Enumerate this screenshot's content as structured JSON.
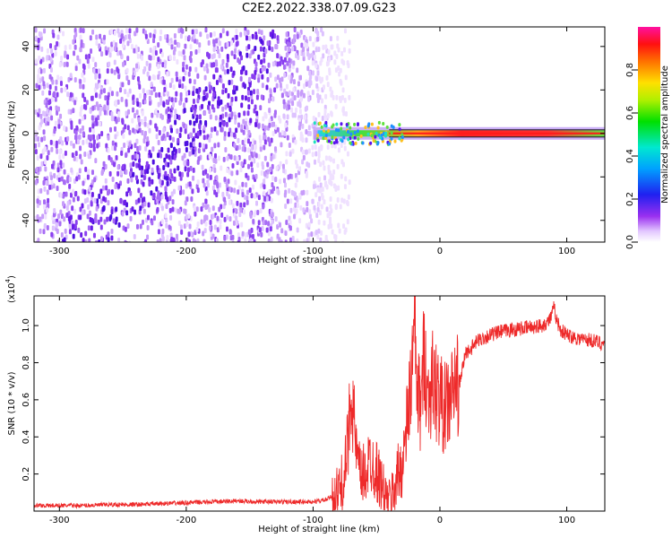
{
  "title": "C2E2.2022.338.07.09.G23",
  "colors": {
    "snr_line": "#ee2a2a",
    "spectro_low": "#5b12ee",
    "spectro_line": "#ff1a1a"
  },
  "chart_data": [
    {
      "type": "heatmap",
      "xlabel": "Height of straight line (km)",
      "ylabel": "Frequency (Hz)",
      "xlim": [
        -320,
        130
      ],
      "ylim": [
        -50,
        49
      ],
      "xticks": [
        -300,
        -200,
        -100,
        0,
        100
      ],
      "xtick_labels": [
        "-300",
        "-200",
        "-100",
        "0",
        "100"
      ],
      "yticks": [
        40,
        20,
        0,
        -20,
        -40
      ],
      "ytick_labels": [
        "40",
        "20",
        "0",
        "-20",
        "-40"
      ],
      "colorbar": {
        "label": "Normalized spectral amplitude",
        "range": [
          0,
          1
        ],
        "ticks": [
          0.0,
          0.2,
          0.4,
          0.6,
          0.8
        ],
        "tick_labels": [
          "0.0",
          "0.2",
          "0.4",
          "0.6",
          "0.8"
        ],
        "colormap": "rainbow"
      },
      "features": {
        "broadband_noise_x_range": [
          -320,
          -80
        ],
        "tone_frequency_hz": 0,
        "tone_onset_x": -100
      }
    },
    {
      "type": "line",
      "xlabel": "Height of straight line (km)",
      "ylabel": "SNR (10 * v/v)",
      "y_multiplier_label": "(x10",
      "y_multiplier_exp": "4",
      "xlim": [
        -320,
        130
      ],
      "ylim": [
        0,
        1.16
      ],
      "xticks": [
        -300,
        -200,
        -100,
        0,
        100
      ],
      "xtick_labels": [
        "-300",
        "-200",
        "-100",
        "0",
        "100"
      ],
      "yticks": [
        0.2,
        0.4,
        0.6,
        0.8,
        1.0
      ],
      "ytick_labels": [
        "0.2",
        "0.4",
        "0.6",
        "0.8",
        "1.0"
      ],
      "series": [
        {
          "x": [
            -320,
            -300,
            -280,
            -260,
            -240,
            -220,
            -200,
            -180,
            -160,
            -140,
            -120,
            -100,
            -90,
            -80,
            -75,
            -72,
            -70,
            -68,
            -65,
            -62,
            -58,
            -55,
            -50,
            -45,
            -42,
            -40,
            -37,
            -34,
            -30,
            -27,
            -25,
            -22,
            -20,
            -18,
            -15,
            -12,
            -10,
            -6,
            -3,
            0,
            4,
            8,
            12,
            16,
            20,
            25,
            30,
            40,
            50,
            60,
            70,
            80,
            85,
            88,
            90,
            92,
            95,
            100,
            110,
            120,
            130
          ],
          "values": [
            0.03,
            0.03,
            0.03,
            0.035,
            0.035,
            0.04,
            0.045,
            0.05,
            0.055,
            0.05,
            0.05,
            0.05,
            0.06,
            0.1,
            0.2,
            0.4,
            0.7,
            0.5,
            0.25,
            0.18,
            0.22,
            0.28,
            0.22,
            0.12,
            0.06,
            0.05,
            0.1,
            0.18,
            0.25,
            0.38,
            0.55,
            0.75,
            1.0,
            0.65,
            0.55,
            0.9,
            0.6,
            0.7,
            0.65,
            0.6,
            0.55,
            0.6,
            0.68,
            0.7,
            0.85,
            0.88,
            0.92,
            0.95,
            0.97,
            0.98,
            0.99,
            1.0,
            1.02,
            1.05,
            1.1,
            1.03,
            0.98,
            0.95,
            0.93,
            0.92,
            0.9
          ]
        }
      ]
    }
  ]
}
